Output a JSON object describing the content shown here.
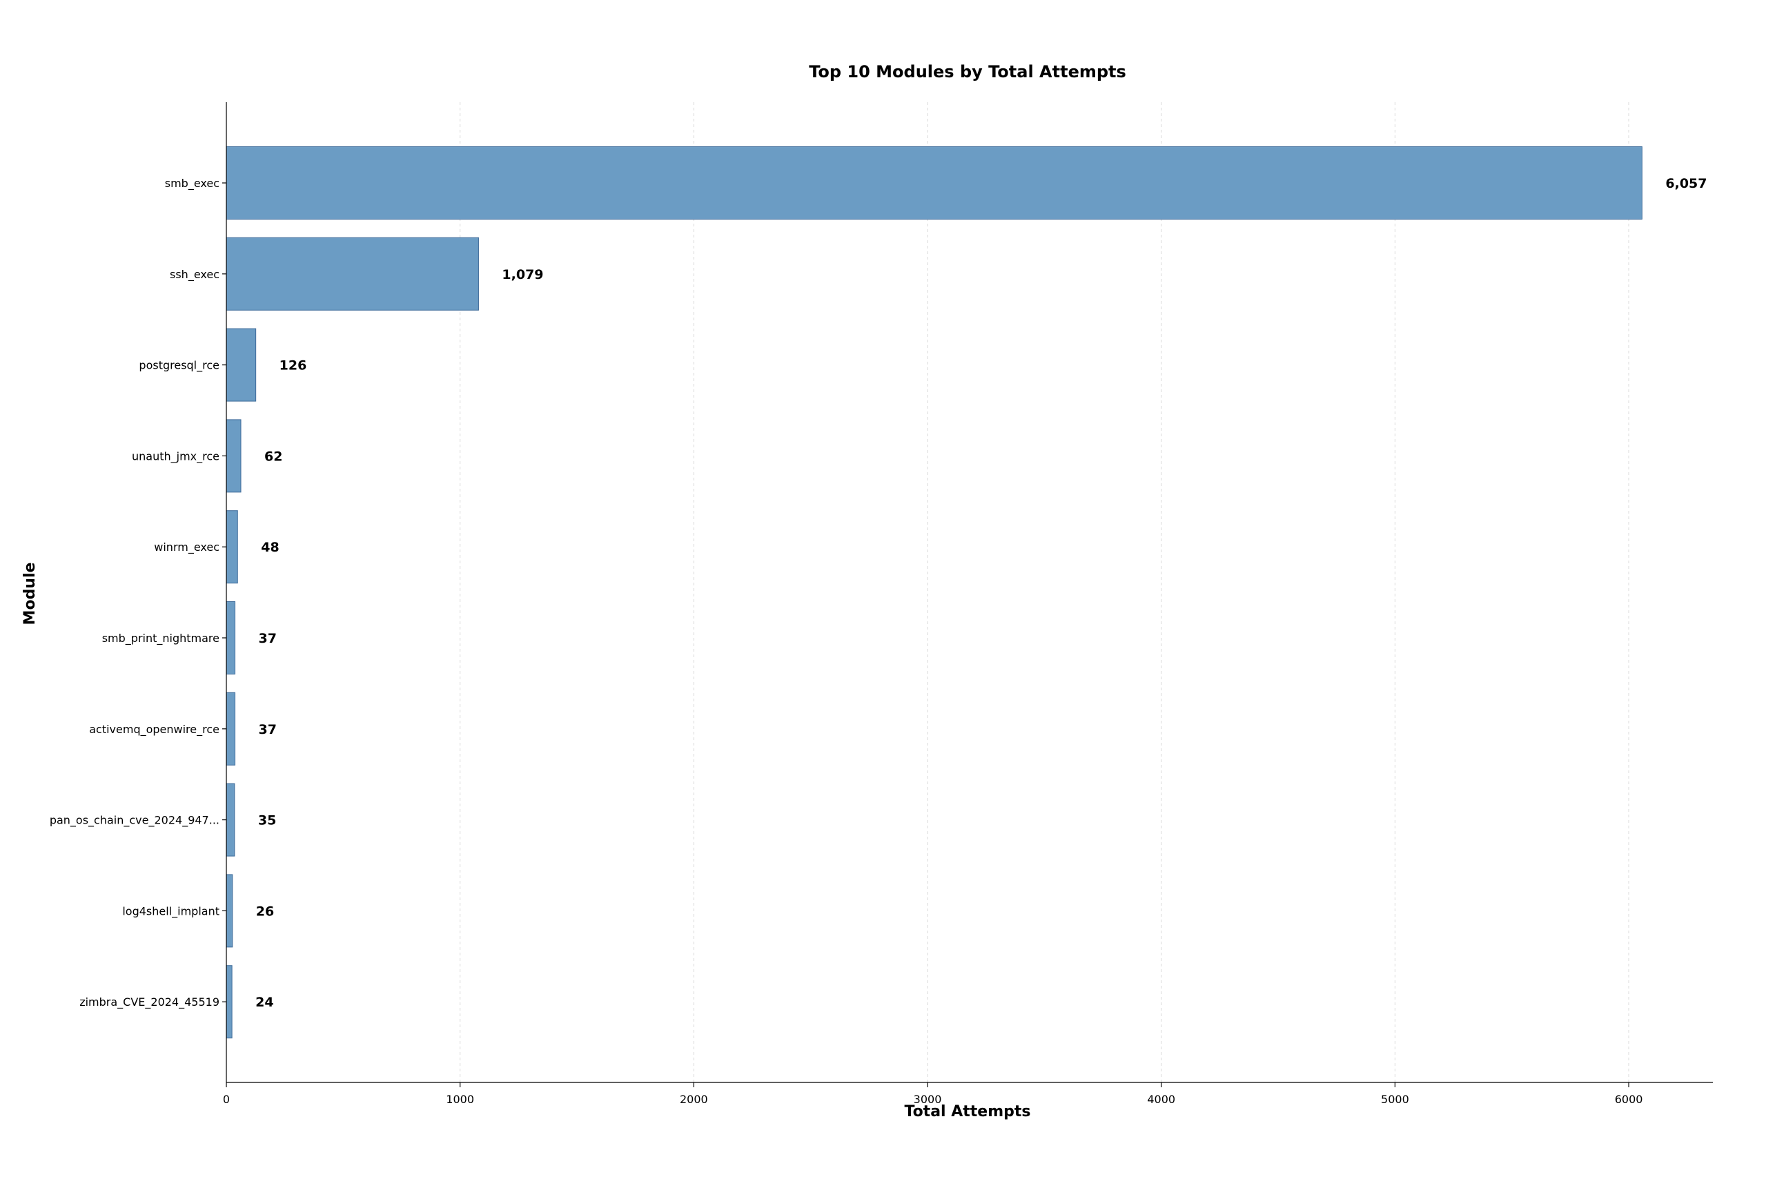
{
  "chart_data": {
    "type": "bar",
    "orientation": "horizontal",
    "title": "Top 10 Modules by Total Attempts",
    "xlabel": "Total Attempts",
    "ylabel": "Module",
    "categories": [
      "smb_exec",
      "ssh_exec",
      "postgresql_rce",
      "unauth_jmx_rce",
      "winrm_exec",
      "smb_print_nightmare",
      "activemq_openwire_rce",
      "pan_os_chain_cve_2024_947...",
      "log4shell_implant",
      "zimbra_CVE_2024_45519"
    ],
    "values": [
      6057,
      1079,
      126,
      62,
      48,
      37,
      37,
      35,
      26,
      24
    ],
    "value_labels": [
      "6,057",
      "1,079",
      "126",
      "62",
      "48",
      "37",
      "37",
      "35",
      "26",
      "24"
    ],
    "xlim": [
      0,
      6360
    ],
    "xticks": [
      0,
      1000,
      2000,
      3000,
      4000,
      5000,
      6000
    ],
    "grid": "x-dashed",
    "bar_color": "#6b9cc4",
    "bar_edge_color": "#3d6a99"
  }
}
